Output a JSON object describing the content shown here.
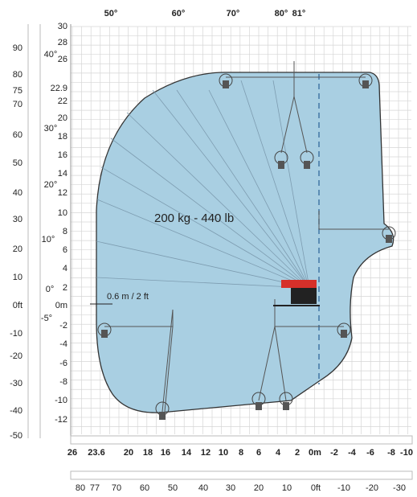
{
  "top_angles": [
    "50°",
    "60°",
    "70°",
    "80°",
    "81°"
  ],
  "left_angles": [
    "40°",
    "30°",
    "20°",
    "10°",
    "0°",
    "-5°"
  ],
  "height_m": [
    "30",
    "28",
    "26",
    "22.9",
    "22",
    "20",
    "18",
    "16",
    "14",
    "12",
    "10",
    "8",
    "6",
    "4",
    "2",
    "0m",
    "-2",
    "-4",
    "-6",
    "-8",
    "-10",
    "-12"
  ],
  "height_ft": [
    "90",
    "80",
    "75",
    "70",
    "60",
    "50",
    "40",
    "30",
    "20",
    "10",
    "0ft",
    "-10",
    "-20",
    "-30",
    "-40",
    "-50"
  ],
  "reach_m": [
    "26",
    "23.6",
    "20",
    "18",
    "16",
    "14",
    "12",
    "10",
    "8",
    "6",
    "4",
    "2",
    "0m",
    "-2",
    "-4",
    "-6",
    "-8",
    "-10"
  ],
  "reach_ft": [
    "80",
    "77",
    "70",
    "60",
    "50",
    "40",
    "30",
    "20",
    "10",
    "0ft",
    "-10",
    "-20",
    "-30"
  ],
  "load_label": "200 kg - 440 lb",
  "offset_label": "0.6 m / 2 ft"
}
